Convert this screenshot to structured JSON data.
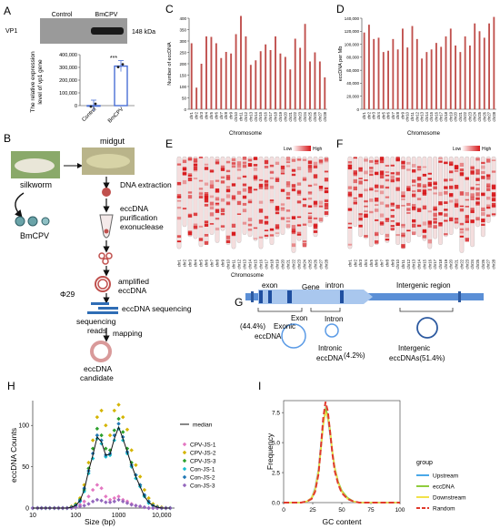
{
  "panels": {
    "A": {
      "letter": "A",
      "wb_row_label": "VP1",
      "wb_col1": "Control",
      "wb_col2": "BmCPV",
      "wb_kda": "148 kDa",
      "ylabel_line1": "The relative expression",
      "ylabel_line2": "level of vp1 gene",
      "sig": "***",
      "chart_data": {
        "type": "bar",
        "categories": [
          "Control",
          "BmCPV"
        ],
        "values": [
          1,
          310000
        ],
        "ylim": [
          0,
          400000
        ],
        "yticks": [
          "0",
          "100,000",
          "200,000",
          "300,000",
          "400,000"
        ],
        "color": "#4a6fd6"
      }
    },
    "B": {
      "letter": "B",
      "silkworm": "silkworm",
      "bmcpv": "BmCPV",
      "midgut": "midgut",
      "dna_extraction": "DNA extraction",
      "purification_line1": "eccDNA",
      "purification_line2": "purification",
      "purification_line3": "exonuclease",
      "amplified_line1": "amplified",
      "amplified_line2": "eccDNA",
      "phi29": "Φ29",
      "sequencing": "eccDNA sequencing",
      "reads_line1": "sequencing",
      "reads_line2": "reads",
      "mapping": "mapping",
      "candidate_line1": "eccDNA",
      "candidate_line2": "candidate"
    },
    "C": {
      "letter": "C",
      "xlabel": "Chromosome",
      "ylabel": "Number of eccDNA",
      "chart_data": {
        "type": "bar",
        "categories": [
          "chr1",
          "chr2",
          "chr3",
          "chr4",
          "chr5",
          "chr6",
          "chr7",
          "chr8",
          "chr9",
          "chr10",
          "chr11",
          "chr12",
          "chr13",
          "chr14",
          "chr15",
          "chr16",
          "chr17",
          "chr18",
          "chr19",
          "chr20",
          "chr21",
          "chr22",
          "chr23",
          "chr24",
          "chr25",
          "chr26",
          "chr27",
          "chr28"
        ],
        "values": [
          290,
          95,
          200,
          320,
          318,
          290,
          225,
          252,
          245,
          330,
          410,
          320,
          195,
          215,
          255,
          285,
          260,
          320,
          245,
          230,
          175,
          310,
          270,
          375,
          210,
          250,
          210,
          140
        ],
        "ylim": [
          0,
          400
        ],
        "yticks": [
          "0",
          "50",
          "100",
          "150",
          "200",
          "250",
          "300",
          "350",
          "400"
        ],
        "color": "#c0504d"
      }
    },
    "D": {
      "letter": "D",
      "xlabel": "Chromosome",
      "ylabel": "eccDNA per Mb",
      "chart_data": {
        "type": "bar",
        "categories": [
          "chr1",
          "chr2",
          "chr3",
          "chr4",
          "chr5",
          "chr6",
          "chr7",
          "chr8",
          "chr9",
          "chr10",
          "chr11",
          "chr12",
          "chr13",
          "chr14",
          "chr15",
          "chr16",
          "chr17",
          "chr18",
          "chr19",
          "chr20",
          "chr21",
          "chr22",
          "chr23",
          "chr24",
          "chr25",
          "chr26",
          "chr27",
          "chr28"
        ],
        "values": [
          118000,
          130000,
          108000,
          110000,
          88000,
          90000,
          108000,
          92000,
          124000,
          95000,
          128000,
          108000,
          78000,
          88000,
          92000,
          102000,
          96000,
          112000,
          124000,
          98000,
          88000,
          112000,
          98000,
          132000,
          120000,
          110000,
          132000,
          142000
        ],
        "ylim": [
          0,
          140000
        ],
        "yticks": [
          "0",
          "20,000",
          "40,000",
          "60,000",
          "80,000",
          "100,000",
          "120,000",
          "140,000"
        ],
        "color": "#c0504d"
      }
    },
    "E": {
      "letter": "E",
      "xlabel": "Chromosome",
      "legend_low": "Low",
      "legend_high": "High",
      "chromosomes": [
        "chr1",
        "chr2",
        "chr3",
        "chr4",
        "chr5",
        "chr6",
        "chr7",
        "chr8",
        "chr9",
        "chr10",
        "chr11",
        "chr12",
        "chr13",
        "chr14",
        "chr15",
        "chr16",
        "chr17",
        "chr18",
        "chr19",
        "chr20",
        "chr21",
        "chr22",
        "chr23",
        "chr24",
        "chr25",
        "chr26",
        "chr27",
        "chr28"
      ],
      "lengths": [
        0.92,
        0.7,
        0.8,
        0.82,
        0.9,
        0.88,
        0.78,
        0.86,
        0.74,
        0.88,
        0.92,
        0.86,
        0.78,
        0.8,
        0.84,
        0.92,
        0.82,
        0.88,
        0.8,
        0.78,
        0.72,
        0.96,
        0.84,
        0.9,
        0.7,
        0.8,
        0.66,
        0.6
      ]
    },
    "F": {
      "letter": "F",
      "legend_low": "Low",
      "legend_high": "High",
      "chromosomes": [
        "chr1",
        "chr2",
        "chr3",
        "chr4",
        "chr5",
        "chr6",
        "chr7",
        "chr8",
        "chr9",
        "chr10",
        "chr11",
        "chr12",
        "chr13",
        "chr14",
        "chr15",
        "chr16",
        "chr17",
        "chr18",
        "chr19",
        "chr20",
        "chr21",
        "chr22",
        "chr23",
        "chr24",
        "chr25",
        "chr26",
        "chr27",
        "chr28"
      ],
      "lengths": [
        0.92,
        0.7,
        0.8,
        0.82,
        0.9,
        0.88,
        0.78,
        0.86,
        0.74,
        0.88,
        0.92,
        0.86,
        0.78,
        0.8,
        0.84,
        0.92,
        0.82,
        0.88,
        0.8,
        0.78,
        0.72,
        0.96,
        0.84,
        0.9,
        0.7,
        0.8,
        0.66,
        0.6
      ]
    },
    "G": {
      "letter": "G",
      "exon": "exon",
      "gene": "Gene",
      "intron": "intron",
      "intergenic_region": "Intergenic region",
      "exon_label": "Exon",
      "intron_label": "Intron",
      "exonic_pct": "(44.4%)",
      "exonic_line1": "Exonic",
      "exonic_line2": "eccDNA",
      "intronic_line1": "Intronic",
      "intronic_line2": "eccDNA",
      "intronic_pct": "(4.2%)",
      "intergenic_line1": "Intergenic",
      "intergenic_line2": "eccDNAs(51.4%)"
    },
    "H": {
      "letter": "H",
      "xlabel": "Size (bp)",
      "ylabel": "eccDNA Counts",
      "legend_median": "median",
      "chart_data": {
        "type": "scatter",
        "x_scale": "log",
        "xlim": [
          10,
          20000
        ],
        "ylim": [
          0,
          130
        ],
        "xticks": [
          "10",
          "100",
          "1000",
          "10,000"
        ],
        "yticks": [
          "0",
          "50",
          "100"
        ],
        "x": [
          10,
          13,
          16,
          20,
          25,
          32,
          40,
          50,
          63,
          80,
          100,
          126,
          158,
          200,
          251,
          316,
          398,
          501,
          631,
          794,
          1000,
          1259,
          1585,
          1995,
          2512,
          3162,
          3981,
          5012,
          6310,
          7943,
          10000,
          12589,
          15849
        ],
        "series": [
          {
            "name": "CPV-JS-1",
            "color": "#e377c2",
            "values": [
              0,
              0,
              0,
              0,
              0,
              0,
              0,
              0,
              0,
              1,
              2,
              4,
              8,
              14,
              22,
              28,
              24,
              14,
              10,
              12,
              14,
              10,
              8,
              5,
              3,
              2,
              1,
              0,
              0,
              0,
              0,
              0,
              0
            ]
          },
          {
            "name": "CPV-JS-2",
            "color": "#d4b400",
            "values": [
              0,
              0,
              0,
              0,
              0,
              0,
              0,
              0,
              0,
              2,
              5,
              12,
              28,
              55,
              82,
              110,
              118,
              100,
              88,
              118,
              125,
              110,
              95,
              70,
              52,
              38,
              22,
              12,
              5,
              2,
              1,
              0,
              0
            ]
          },
          {
            "name": "CPV-JS-3",
            "color": "#2ca02c",
            "values": [
              0,
              0,
              0,
              0,
              0,
              0,
              0,
              0,
              0,
              1,
              4,
              10,
              22,
              48,
              72,
              96,
              88,
              72,
              70,
              94,
              108,
              92,
              72,
              55,
              40,
              28,
              15,
              8,
              3,
              1,
              0,
              0,
              0
            ]
          },
          {
            "name": "Con-JS-1",
            "color": "#17becf",
            "values": [
              0,
              0,
              0,
              0,
              0,
              0,
              0,
              0,
              0,
              1,
              3,
              8,
              20,
              42,
              60,
              84,
              78,
              62,
              64,
              82,
              96,
              82,
              66,
              50,
              36,
              26,
              14,
              6,
              3,
              1,
              0,
              0,
              0
            ]
          },
          {
            "name": "Con-JS-2",
            "color": "#1f77b4",
            "values": [
              0,
              0,
              0,
              0,
              0,
              0,
              0,
              0,
              0,
              1,
              3,
              9,
              24,
              45,
              66,
              88,
              82,
              64,
              66,
              88,
              102,
              86,
              68,
              52,
              40,
              28,
              16,
              8,
              3,
              1,
              0,
              0,
              0
            ]
          },
          {
            "name": "Con-JS-3",
            "color": "#9467bd",
            "values": [
              0,
              0,
              0,
              0,
              0,
              0,
              0,
              0,
              0,
              0,
              1,
              2,
              3,
              5,
              8,
              10,
              9,
              7,
              7,
              8,
              10,
              8,
              6,
              4,
              3,
              2,
              1,
              0,
              0,
              0,
              0,
              0,
              0
            ]
          }
        ],
        "median": [
          0,
          0,
          0,
          0,
          0,
          0,
          0,
          0,
          0,
          1,
          3,
          9,
          22,
          45,
          64,
          86,
          80,
          64,
          65,
          84,
          98,
          84,
          68,
          52,
          38,
          26,
          14,
          7,
          3,
          1,
          0,
          0,
          0
        ]
      }
    },
    "I": {
      "letter": "I",
      "xlabel": "GC content",
      "ylabel": "Frequency",
      "legend_title": "group",
      "chart_data": {
        "type": "line",
        "xlim": [
          0,
          100
        ],
        "ylim": [
          0,
          8.5
        ],
        "xticks": [
          "0",
          "25",
          "50",
          "75",
          "100"
        ],
        "yticks": [
          "0.0",
          "2.5",
          "5.0",
          "7.5"
        ],
        "x": [
          0,
          5,
          10,
          15,
          20,
          24,
          27,
          30,
          32,
          34,
          36,
          38,
          40,
          42,
          44,
          47,
          50,
          55,
          60,
          65,
          70,
          75,
          80,
          85,
          90,
          95,
          100
        ],
        "series": [
          {
            "name": "Upstream",
            "color": "#4aa8e8",
            "dash": "",
            "values": [
              0,
              0,
              0,
              0,
              0.1,
              0.4,
              1.2,
              2.8,
              4.8,
              6.6,
              7.6,
              7.0,
              5.6,
              4.0,
              2.8,
              1.6,
              0.9,
              0.3,
              0.1,
              0,
              0,
              0,
              0,
              0,
              0,
              0,
              0
            ]
          },
          {
            "name": "eccDNA",
            "color": "#8fcc3c",
            "dash": "",
            "values": [
              0,
              0,
              0,
              0,
              0.1,
              0.3,
              1.0,
              2.5,
              4.4,
              6.4,
              7.8,
              7.3,
              6.0,
              4.2,
              2.9,
              1.7,
              1.0,
              0.4,
              0.1,
              0,
              0,
              0,
              0,
              0,
              0,
              0,
              0
            ]
          },
          {
            "name": "Downstream",
            "color": "#f2e24a",
            "dash": "",
            "values": [
              0,
              0,
              0,
              0,
              0.1,
              0.4,
              1.1,
              2.7,
              4.6,
              6.5,
              7.5,
              7.1,
              5.8,
              4.1,
              2.8,
              1.6,
              0.9,
              0.3,
              0.1,
              0,
              0,
              0,
              0,
              0,
              0,
              0,
              0
            ]
          },
          {
            "name": "Random",
            "color": "#e03a2c",
            "dash": "6,3",
            "values": [
              0,
              0,
              0,
              0,
              0.1,
              0.3,
              0.9,
              2.4,
              4.6,
              7.0,
              8.4,
              7.6,
              5.8,
              4.0,
              2.6,
              1.5,
              0.8,
              0.3,
              0.1,
              0,
              0,
              0,
              0,
              0,
              0,
              0,
              0
            ]
          }
        ]
      }
    }
  }
}
